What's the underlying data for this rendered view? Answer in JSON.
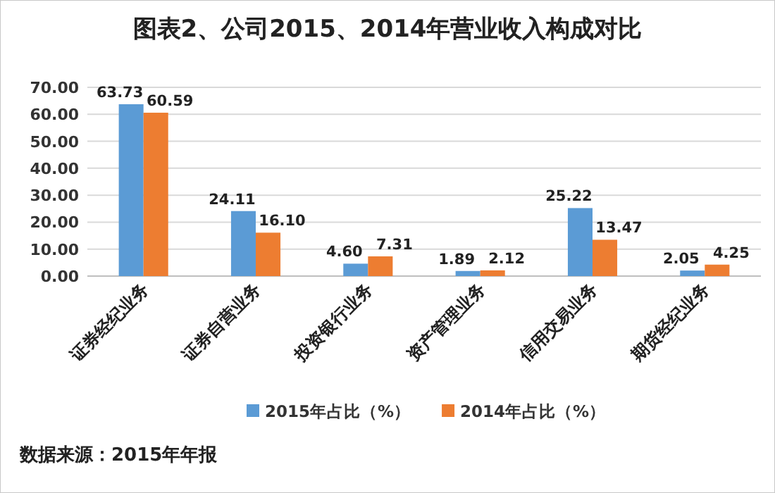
{
  "chart_data": {
    "type": "bar",
    "title": "图表2、公司2015、2014年营业收入构成对比",
    "categories": [
      "证券经纪业务",
      "证券自营业务",
      "投资银行业务",
      "资产管理业务",
      "信用交易业务",
      "期货经纪业务"
    ],
    "series": [
      {
        "name": "2015年占比（%）",
        "color": "#5b9bd5",
        "values": [
          63.73,
          24.11,
          4.6,
          1.89,
          25.22,
          2.05
        ],
        "value_labels": [
          "63.73",
          "24.11",
          "4.60",
          "1.89",
          "25.22",
          "2.05"
        ]
      },
      {
        "name": "2014年占比（%）",
        "color": "#ed7d31",
        "values": [
          60.59,
          16.1,
          7.31,
          2.12,
          13.47,
          4.25
        ],
        "value_labels": [
          "60.59",
          "16.10",
          "7.31",
          "2.12",
          "13.47",
          "4.25"
        ]
      }
    ],
    "ylim": [
      0,
      70
    ],
    "yticks": [
      {
        "value": 0,
        "label": "0.00"
      },
      {
        "value": 10,
        "label": "10.00"
      },
      {
        "value": 20,
        "label": "20.00"
      },
      {
        "value": 30,
        "label": "30.00"
      },
      {
        "value": 40,
        "label": "40.00"
      },
      {
        "value": 50,
        "label": "50.00"
      },
      {
        "value": 60,
        "label": "60.00"
      },
      {
        "value": 70,
        "label": "70.00"
      }
    ],
    "grid": "y",
    "legend": "bottom",
    "annotations": [
      "数据来源：2015年年报"
    ]
  }
}
